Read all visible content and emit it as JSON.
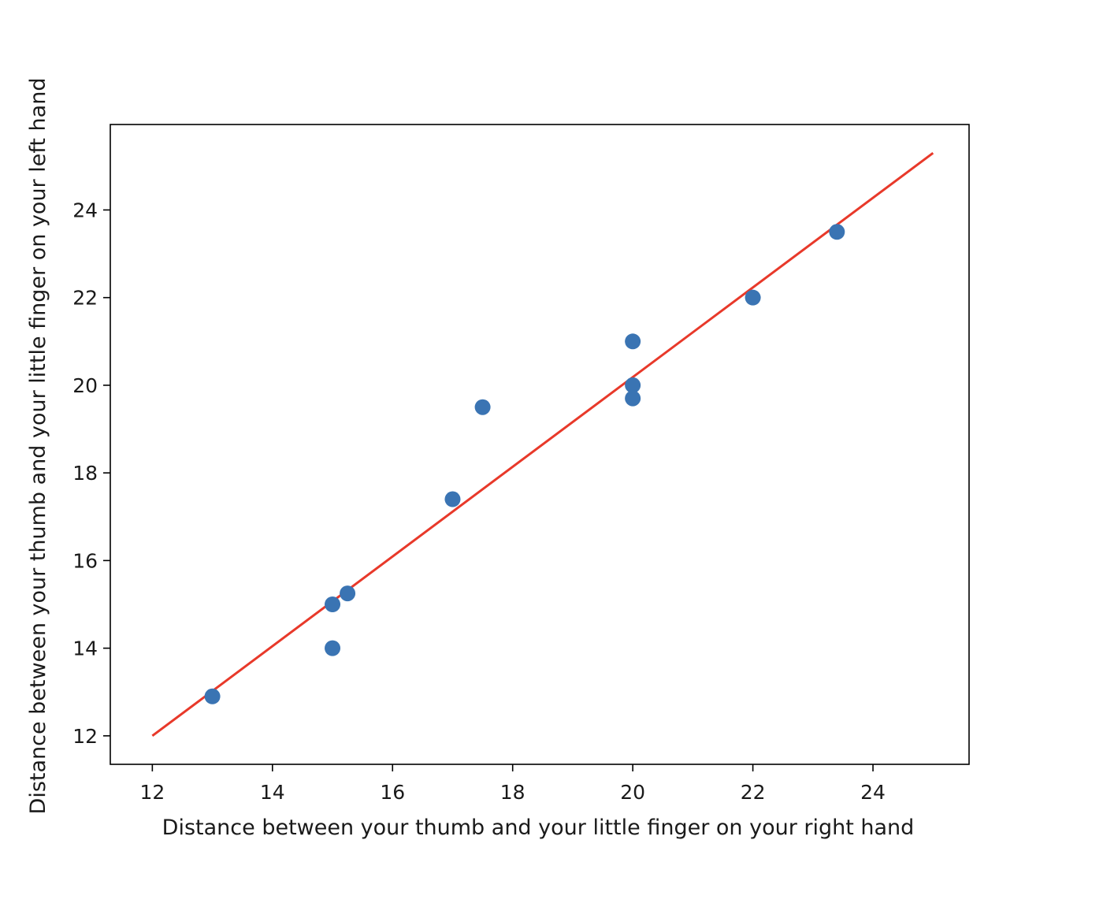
{
  "chart_data": {
    "type": "scatter",
    "title": "",
    "xlabel": "Distance between your thumb and your little finger on your right hand",
    "ylabel": "Distance between your thumb and your little finger on your left hand",
    "xlim": [
      11.3,
      25.6
    ],
    "ylim": [
      11.35,
      25.95
    ],
    "x_ticks": [
      12,
      14,
      16,
      18,
      20,
      22,
      24
    ],
    "y_ticks": [
      12,
      14,
      16,
      18,
      20,
      22,
      24
    ],
    "grid": false,
    "legend": "none",
    "points": [
      {
        "x": 13.0,
        "y": 12.9
      },
      {
        "x": 15.0,
        "y": 15.0
      },
      {
        "x": 15.0,
        "y": 14.0
      },
      {
        "x": 15.25,
        "y": 15.25
      },
      {
        "x": 17.0,
        "y": 17.4
      },
      {
        "x": 17.5,
        "y": 19.5
      },
      {
        "x": 20.0,
        "y": 21.0
      },
      {
        "x": 20.0,
        "y": 20.0
      },
      {
        "x": 20.0,
        "y": 19.7
      },
      {
        "x": 22.0,
        "y": 22.0
      },
      {
        "x": 23.4,
        "y": 23.5
      }
    ],
    "fit_line": {
      "x": [
        12,
        25
      ],
      "y": [
        12.0,
        25.3
      ]
    },
    "colors": {
      "points": "#3a74b3",
      "line": "#e8392a",
      "axes": "#000000"
    }
  }
}
